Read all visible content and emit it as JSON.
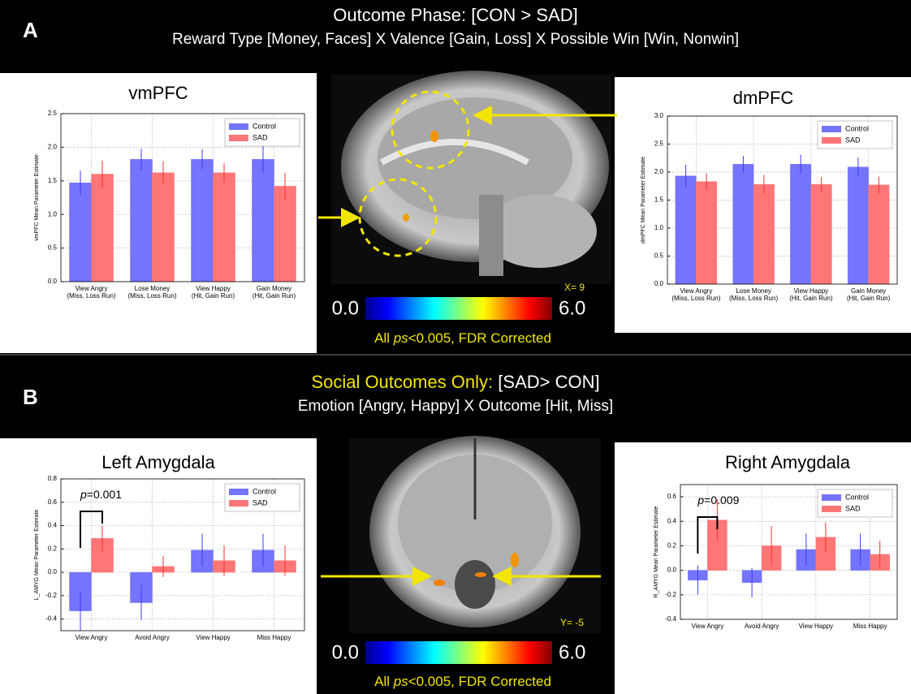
{
  "panel_a": {
    "letter": "A",
    "title": "Outcome Phase: [CON > SAD]",
    "subtitle": "Reward Type [Money, Faces] X Valence [Gain, Loss] X Possible Win [Win, Nonwin]",
    "slice_label": "X= 9",
    "colorbar": {
      "min": {
        "value": 0,
        "label": "0.0"
      },
      "max": {
        "value": 6,
        "label": "6.0"
      }
    },
    "note": {
      "prefix": "All ",
      "italic": "ps",
      "suffix": "<0.005, FDR Corrected"
    }
  },
  "panel_b": {
    "letter": "B",
    "title_highlight": "Social Outcomes Only:",
    "title": "[SAD> CON]",
    "subtitle": "Emotion [Angry, Happy] X Outcome [Hit, Miss]",
    "slice_label": "Y= -5",
    "colorbar": {
      "min": {
        "value": 0,
        "label": "0.0"
      },
      "max": {
        "value": 6,
        "label": "6.0"
      }
    },
    "note": {
      "prefix": "All ",
      "italic": "ps",
      "suffix": "<0.005, FDR Corrected"
    }
  },
  "chart_data": [
    {
      "type": "bar",
      "title": "vmPFC",
      "ylabel": "vmPFC Mean Parameter Estimate",
      "categories": [
        "View Angry\n(Miss, Loss Run)",
        "Lose Money\n(Miss, Loss Run)",
        "View Happy\n(Hit, Gain Run)",
        "Gain Money\n(Hit, Gain Run)"
      ],
      "series": [
        {
          "name": "Control",
          "color": "#7474ff",
          "error_color": "#3b3bff",
          "values": [
            1.47,
            1.82,
            1.82,
            1.82
          ],
          "errors": [
            0.18,
            0.16,
            0.15,
            0.2
          ]
        },
        {
          "name": "SAD",
          "color": "#ff7676",
          "error_color": "#ff3030",
          "values": [
            1.6,
            1.62,
            1.62,
            1.42
          ],
          "errors": [
            0.2,
            0.17,
            0.14,
            0.2
          ]
        }
      ],
      "ylim": [
        0,
        2.5
      ],
      "yticks": [
        {
          "value": 0,
          "label": "0.0"
        },
        0.5,
        {
          "value": 1,
          "label": "1.0"
        },
        1.5,
        {
          "value": 2,
          "label": "2.0"
        },
        2.5
      ],
      "grid": true,
      "legend": "upper right"
    },
    {
      "type": "bar",
      "title": "dmPFC",
      "ylabel": "dmPFC Mean Parameter Estimate",
      "categories": [
        "View Angry\n(Miss, Loss Run)",
        "Lose Money\n(Miss, Loss Run)",
        "View Happy\n(Hit, Gain Run)",
        "Gain Money\n(Hit, Gain Run)"
      ],
      "series": [
        {
          "name": "Control",
          "color": "#7474ff",
          "error_color": "#3b3bff",
          "values": [
            1.93,
            2.14,
            2.14,
            2.09
          ],
          "errors": [
            0.2,
            0.15,
            0.17,
            0.17
          ]
        },
        {
          "name": "SAD",
          "color": "#ff7676",
          "error_color": "#ff3030",
          "values": [
            1.83,
            1.78,
            1.78,
            1.77
          ],
          "errors": [
            0.15,
            0.17,
            0.13,
            0.15
          ]
        }
      ],
      "ylim": [
        0,
        3
      ],
      "yticks": [
        {
          "value": 0,
          "label": "0.0"
        },
        0.5,
        {
          "value": 1,
          "label": "1.0"
        },
        1.5,
        {
          "value": 2,
          "label": "2.0"
        },
        2.5,
        {
          "value": 3,
          "label": "3.0"
        }
      ],
      "grid": true,
      "legend": "upper right"
    },
    {
      "type": "bar",
      "title": "Left Amygdala",
      "ylabel": "L_AMYG Mean Parameter Estimate",
      "categories": [
        "View Angry",
        "Avoid Angry",
        "View Happy",
        "Miss Happy"
      ],
      "series": [
        {
          "name": "Control",
          "color": "#7474ff",
          "error_color": "#3b3bff",
          "values": [
            -0.33,
            -0.26,
            0.19,
            0.19
          ],
          "errors": [
            0.17,
            0.15,
            0.14,
            0.14
          ]
        },
        {
          "name": "SAD",
          "color": "#ff7676",
          "error_color": "#ff3030",
          "values": [
            0.29,
            0.05,
            0.1,
            0.1
          ],
          "errors": [
            0.11,
            0.09,
            0.13,
            0.13
          ]
        }
      ],
      "ylim": [
        -0.5,
        0.8
      ],
      "yticks": [
        -0.4,
        -0.2,
        {
          "value": 0,
          "label": "0.0"
        },
        0.2,
        0.4,
        0.6,
        0.8
      ],
      "grid": true,
      "legend": "upper right",
      "annotation": {
        "italic": "p",
        "text": "=0.001"
      }
    },
    {
      "type": "bar",
      "title": "Right Amygdala",
      "ylabel": "R_AMYG Mean Parameter Estimate",
      "categories": [
        "View Angry",
        "Avoid Angry",
        "View Happy",
        "Miss Happy"
      ],
      "series": [
        {
          "name": "Control",
          "color": "#7474ff",
          "error_color": "#3b3bff",
          "values": [
            -0.08,
            -0.1,
            0.17,
            0.17
          ],
          "errors": [
            0.12,
            0.12,
            0.13,
            0.13
          ]
        },
        {
          "name": "SAD",
          "color": "#ff7676",
          "error_color": "#ff3030",
          "values": [
            0.41,
            0.2,
            0.27,
            0.13
          ],
          "errors": [
            0.17,
            0.16,
            0.12,
            0.11
          ]
        }
      ],
      "ylim": [
        -0.4,
        0.7
      ],
      "yticks": [
        -0.4,
        -0.2,
        {
          "value": 0,
          "label": "0.0"
        },
        0.2,
        0.4,
        0.6
      ],
      "grid": true,
      "legend": "upper right",
      "annotation": {
        "italic": "p",
        "text": "=0.009"
      }
    }
  ]
}
